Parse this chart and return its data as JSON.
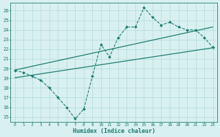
{
  "x": [
    0,
    1,
    2,
    3,
    4,
    5,
    6,
    7,
    8,
    9,
    10,
    11,
    12,
    13,
    14,
    15,
    16,
    17,
    18,
    19,
    20,
    21,
    22,
    23
  ],
  "y_main": [
    19.8,
    19.6,
    19.2,
    18.8,
    18.0,
    17.0,
    16.0,
    14.8,
    15.8,
    19.2,
    22.5,
    21.2,
    23.2,
    24.3,
    24.3,
    26.3,
    25.3,
    24.5,
    24.8,
    24.3,
    24.0,
    24.0,
    23.2,
    22.2
  ],
  "line_color": "#1a7a6e",
  "bg_color": "#d8f0f0",
  "grid_color": "#b0d8d8",
  "axis_color": "#1a7a6e",
  "xlabel": "Humidex (Indice chaleur)",
  "ylim": [
    14.5,
    26.8
  ],
  "xlim": [
    -0.5,
    23.5
  ],
  "yticks": [
    15,
    16,
    17,
    18,
    19,
    20,
    21,
    22,
    23,
    24,
    25,
    26
  ],
  "xticks": [
    0,
    1,
    2,
    3,
    4,
    5,
    6,
    7,
    8,
    9,
    10,
    11,
    12,
    13,
    14,
    15,
    16,
    17,
    18,
    19,
    20,
    21,
    22,
    23
  ],
  "upper_line": [
    19.85,
    24.3
  ],
  "lower_line": [
    19.05,
    22.15
  ]
}
